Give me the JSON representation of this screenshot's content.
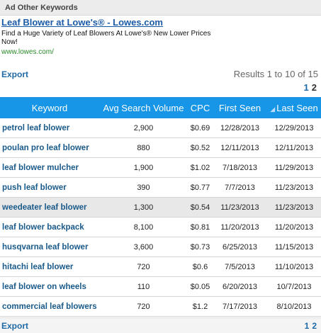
{
  "header": {
    "title": "Ad Other Keywords"
  },
  "ad": {
    "title": "Leaf Blower at Lowe's® - Lowes.com",
    "description": "Find a Huge Variety of Leaf Blowers At Lowe's® New Lower Prices Now!",
    "url": "www.lowes.com/"
  },
  "toolbar": {
    "export_label": "Export",
    "results_text": "Results 1 to 10 of 15"
  },
  "pager": {
    "page1": "1",
    "page2": "2"
  },
  "table": {
    "columns": [
      "Keyword",
      "Avg Search Volume",
      "CPC",
      "First Seen",
      "Last Seen"
    ],
    "sorted_column_icon": "sort-arrow-icon",
    "rows": [
      {
        "keyword": "petrol leaf blower",
        "volume": "2,900",
        "cpc": "$0.69",
        "first_seen": "12/28/2013",
        "last_seen": "12/29/2013"
      },
      {
        "keyword": "poulan pro leaf blower",
        "volume": "880",
        "cpc": "$0.52",
        "first_seen": "12/11/2013",
        "last_seen": "12/11/2013"
      },
      {
        "keyword": "leaf blower mulcher",
        "volume": "1,900",
        "cpc": "$1.02",
        "first_seen": "7/18/2013",
        "last_seen": "11/29/2013"
      },
      {
        "keyword": "push leaf blower",
        "volume": "390",
        "cpc": "$0.77",
        "first_seen": "7/7/2013",
        "last_seen": "11/23/2013"
      },
      {
        "keyword": "weedeater leaf blower",
        "volume": "1,300",
        "cpc": "$0.54",
        "first_seen": "11/23/2013",
        "last_seen": "11/23/2013"
      },
      {
        "keyword": "leaf blower backpack",
        "volume": "8,100",
        "cpc": "$0.81",
        "first_seen": "11/20/2013",
        "last_seen": "11/20/2013"
      },
      {
        "keyword": "husqvarna leaf blower",
        "volume": "3,600",
        "cpc": "$0.73",
        "first_seen": "6/25/2013",
        "last_seen": "11/15/2013"
      },
      {
        "keyword": "hitachi leaf blower",
        "volume": "720",
        "cpc": "$0.6",
        "first_seen": "7/5/2013",
        "last_seen": "11/10/2013"
      },
      {
        "keyword": "leaf blower on wheels",
        "volume": "110",
        "cpc": "$0.05",
        "first_seen": "6/20/2013",
        "last_seen": "10/7/2013"
      },
      {
        "keyword": "commercial leaf blowers",
        "volume": "720",
        "cpc": "$1.2",
        "first_seen": "7/17/2013",
        "last_seen": "8/10/2013"
      }
    ],
    "highlighted_row": 4
  },
  "colors": {
    "header_blue": "#1795e6",
    "link_blue": "#1f6aa5",
    "ad_url_green": "#2a8a2a"
  }
}
